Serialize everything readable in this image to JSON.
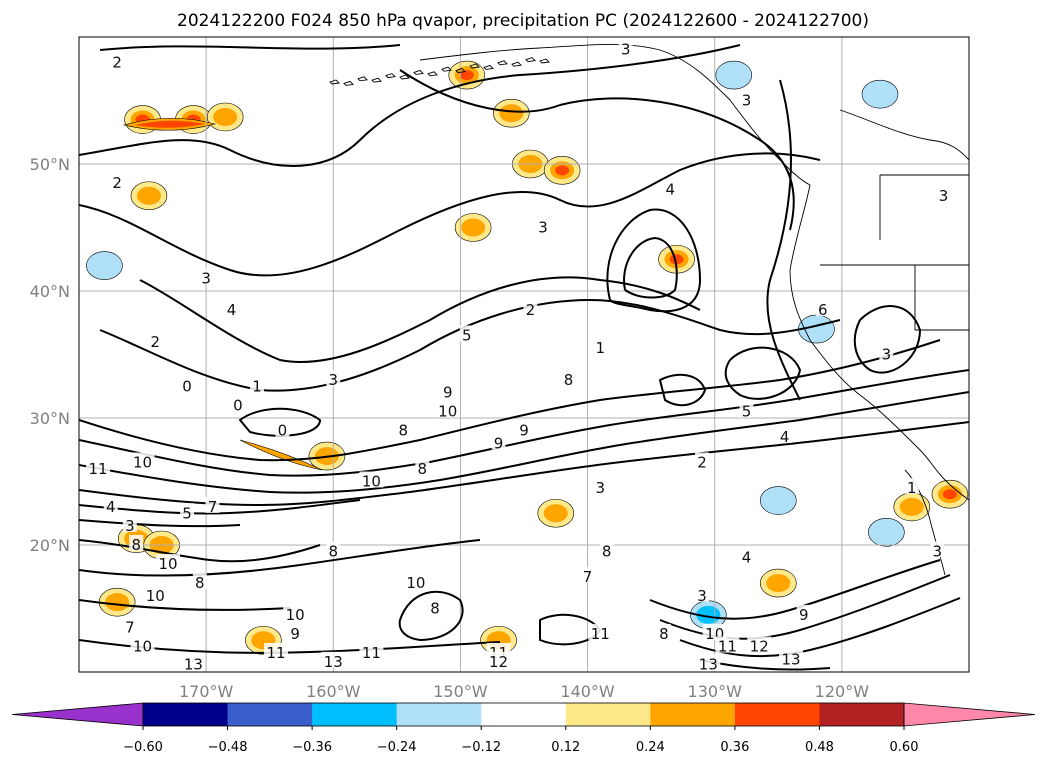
{
  "chart_data": {
    "type": "heatmap",
    "title": "2024122200 F024 850 hPa qvapor, precipitation PC (2024122600 - 2024122700)",
    "xlabel": "",
    "ylabel": "",
    "x_ticks": [
      "170°W",
      "160°W",
      "150°W",
      "140°W",
      "130°W",
      "120°W"
    ],
    "x_tick_values": [
      -170,
      -160,
      -150,
      -140,
      -130,
      -120
    ],
    "y_ticks": [
      "20°N",
      "30°N",
      "40°N",
      "50°N"
    ],
    "y_tick_values": [
      20,
      30,
      40,
      50
    ],
    "lon_range": [
      -180,
      -110
    ],
    "lat_range": [
      10,
      60
    ],
    "grid": true,
    "colorbar": {
      "orientation": "horizontal",
      "tick_labels": [
        "−0.60",
        "−0.48",
        "−0.36",
        "−0.24",
        "−0.12",
        "0.12",
        "0.24",
        "0.36",
        "0.48",
        "0.60"
      ],
      "boundaries": [
        -0.6,
        -0.48,
        -0.36,
        -0.24,
        -0.12,
        0.12,
        0.24,
        0.36,
        0.48,
        0.6
      ],
      "colors": [
        "#9932cc",
        "#00008b",
        "#3a5fcd",
        "#00bfff",
        "#afe0f8",
        "#ffffff",
        "#fde98a",
        "#ffa500",
        "#ff4500",
        "#b22222",
        "#ff88aa"
      ],
      "extend": "both"
    },
    "contour_labels": [
      {
        "text": "2",
        "lon": -177.0,
        "lat": 58.0
      },
      {
        "text": "3",
        "lon": -137.0,
        "lat": 59.0
      },
      {
        "text": "3",
        "lon": -127.5,
        "lat": 55.0
      },
      {
        "text": "2",
        "lon": -177.0,
        "lat": 48.5
      },
      {
        "text": "4",
        "lon": -133.5,
        "lat": 48.0
      },
      {
        "text": "3",
        "lon": -143.5,
        "lat": 45.0
      },
      {
        "text": "3",
        "lon": -112.0,
        "lat": 47.5
      },
      {
        "text": "3",
        "lon": -170.0,
        "lat": 41.0
      },
      {
        "text": "4",
        "lon": -168.0,
        "lat": 38.5
      },
      {
        "text": "2",
        "lon": -144.5,
        "lat": 38.5
      },
      {
        "text": "5",
        "lon": -149.5,
        "lat": 36.5
      },
      {
        "text": "6",
        "lon": -121.5,
        "lat": 38.5
      },
      {
        "text": "2",
        "lon": -174.0,
        "lat": 36.0
      },
      {
        "text": "1",
        "lon": -139.0,
        "lat": 35.5
      },
      {
        "text": "3",
        "lon": -116.5,
        "lat": 35.0
      },
      {
        "text": "1",
        "lon": -166.0,
        "lat": 32.5
      },
      {
        "text": "3",
        "lon": -160.0,
        "lat": 33.0
      },
      {
        "text": "8",
        "lon": -141.5,
        "lat": 33.0
      },
      {
        "text": "0",
        "lon": -171.5,
        "lat": 32.5
      },
      {
        "text": "0",
        "lon": -167.5,
        "lat": 31.0
      },
      {
        "text": "9",
        "lon": -151.0,
        "lat": 32.0
      },
      {
        "text": "10",
        "lon": -151.0,
        "lat": 30.5
      },
      {
        "text": "5",
        "lon": -127.5,
        "lat": 30.5
      },
      {
        "text": "0",
        "lon": -164.0,
        "lat": 29.0
      },
      {
        "text": "8",
        "lon": -154.5,
        "lat": 29.0
      },
      {
        "text": "9",
        "lon": -147.0,
        "lat": 28.0
      },
      {
        "text": "9",
        "lon": -145.0,
        "lat": 29.0
      },
      {
        "text": "4",
        "lon": -124.5,
        "lat": 28.5
      },
      {
        "text": "11",
        "lon": -178.5,
        "lat": 26.0
      },
      {
        "text": "10",
        "lon": -175.0,
        "lat": 26.5
      },
      {
        "text": "8",
        "lon": -153.0,
        "lat": 26.0
      },
      {
        "text": "2",
        "lon": -131.0,
        "lat": 26.5
      },
      {
        "text": "10",
        "lon": -157.0,
        "lat": 25.0
      },
      {
        "text": "3",
        "lon": -139.0,
        "lat": 24.5
      },
      {
        "text": "1",
        "lon": -114.5,
        "lat": 24.5
      },
      {
        "text": "4",
        "lon": -177.5,
        "lat": 23.0
      },
      {
        "text": "5",
        "lon": -171.5,
        "lat": 22.5
      },
      {
        "text": "7",
        "lon": -169.5,
        "lat": 23.0
      },
      {
        "text": "3",
        "lon": -176.0,
        "lat": 21.5
      },
      {
        "text": "8",
        "lon": -175.5,
        "lat": 20.0
      },
      {
        "text": "8",
        "lon": -160.0,
        "lat": 19.5
      },
      {
        "text": "8",
        "lon": -138.5,
        "lat": 19.5
      },
      {
        "text": "4",
        "lon": -127.5,
        "lat": 19.0
      },
      {
        "text": "3",
        "lon": -112.5,
        "lat": 19.5
      },
      {
        "text": "10",
        "lon": -173.0,
        "lat": 18.5
      },
      {
        "text": "8",
        "lon": -170.5,
        "lat": 17.0
      },
      {
        "text": "10",
        "lon": -153.5,
        "lat": 17.0
      },
      {
        "text": "7",
        "lon": -140.0,
        "lat": 17.5
      },
      {
        "text": "10",
        "lon": -174.0,
        "lat": 16.0
      },
      {
        "text": "10",
        "lon": -163.0,
        "lat": 14.5
      },
      {
        "text": "8",
        "lon": -152.0,
        "lat": 15.0
      },
      {
        "text": "3",
        "lon": -131.0,
        "lat": 16.0
      },
      {
        "text": "9",
        "lon": -123.0,
        "lat": 14.5
      },
      {
        "text": "7",
        "lon": -176.0,
        "lat": 13.5
      },
      {
        "text": "9",
        "lon": -163.0,
        "lat": 13.0
      },
      {
        "text": "11",
        "lon": -139.0,
        "lat": 13.0
      },
      {
        "text": "8",
        "lon": -134.0,
        "lat": 13.0
      },
      {
        "text": "10",
        "lon": -130.0,
        "lat": 13.0
      },
      {
        "text": "10",
        "lon": -175.0,
        "lat": 12.0
      },
      {
        "text": "11",
        "lon": -129.0,
        "lat": 12.0
      },
      {
        "text": "12",
        "lon": -126.5,
        "lat": 12.0
      },
      {
        "text": "11",
        "lon": -164.5,
        "lat": 11.5
      },
      {
        "text": "11",
        "lon": -157.0,
        "lat": 11.5
      },
      {
        "text": "11",
        "lon": -147.0,
        "lat": 11.5
      },
      {
        "text": "12",
        "lon": -147.0,
        "lat": 10.8
      },
      {
        "text": "13",
        "lon": -171.0,
        "lat": 10.6
      },
      {
        "text": "13",
        "lon": -160.0,
        "lat": 10.8
      },
      {
        "text": "13",
        "lon": -130.5,
        "lat": 10.6
      },
      {
        "text": "13",
        "lon": -124.0,
        "lat": 11.0
      }
    ],
    "precip_blobs": [
      {
        "lon": -171.0,
        "lat": 53.5,
        "level": 0.36
      },
      {
        "lon": -175.0,
        "lat": 53.5,
        "level": 0.36
      },
      {
        "lon": -168.5,
        "lat": 53.7,
        "level": 0.24
      },
      {
        "lon": -149.5,
        "lat": 57.0,
        "level": 0.36
      },
      {
        "lon": -146.0,
        "lat": 54.0,
        "level": 0.24
      },
      {
        "lon": -149.0,
        "lat": 45.0,
        "level": 0.24
      },
      {
        "lon": -144.5,
        "lat": 50.0,
        "level": 0.24
      },
      {
        "lon": -174.5,
        "lat": 47.5,
        "level": 0.24
      },
      {
        "lon": -142.0,
        "lat": 49.5,
        "level": 0.36
      },
      {
        "lon": -133.0,
        "lat": 42.5,
        "level": 0.36
      },
      {
        "lon": -160.5,
        "lat": 27.0,
        "level": 0.24
      },
      {
        "lon": -175.5,
        "lat": 20.5,
        "level": 0.24
      },
      {
        "lon": -173.5,
        "lat": 20.0,
        "level": 0.24
      },
      {
        "lon": -177.0,
        "lat": 15.5,
        "level": 0.24
      },
      {
        "lon": -165.5,
        "lat": 12.5,
        "level": 0.24
      },
      {
        "lon": -147.0,
        "lat": 12.5,
        "level": 0.24
      },
      {
        "lon": -142.5,
        "lat": 22.5,
        "level": 0.24
      },
      {
        "lon": -125.0,
        "lat": 17.0,
        "level": 0.24
      },
      {
        "lon": -111.5,
        "lat": 24.0,
        "level": 0.36
      },
      {
        "lon": -114.5,
        "lat": 23.0,
        "level": 0.24
      },
      {
        "lon": -178.0,
        "lat": 42.0,
        "level": -0.24
      },
      {
        "lon": -128.5,
        "lat": 57.0,
        "level": -0.24
      },
      {
        "lon": -117.0,
        "lat": 55.5,
        "level": -0.24
      },
      {
        "lon": -122.0,
        "lat": 37.0,
        "level": -0.24
      },
      {
        "lon": -130.5,
        "lat": 14.5,
        "level": -0.36
      },
      {
        "lon": -116.5,
        "lat": 21.0,
        "level": -0.24
      },
      {
        "lon": -125.0,
        "lat": 23.5,
        "level": -0.24
      }
    ]
  }
}
